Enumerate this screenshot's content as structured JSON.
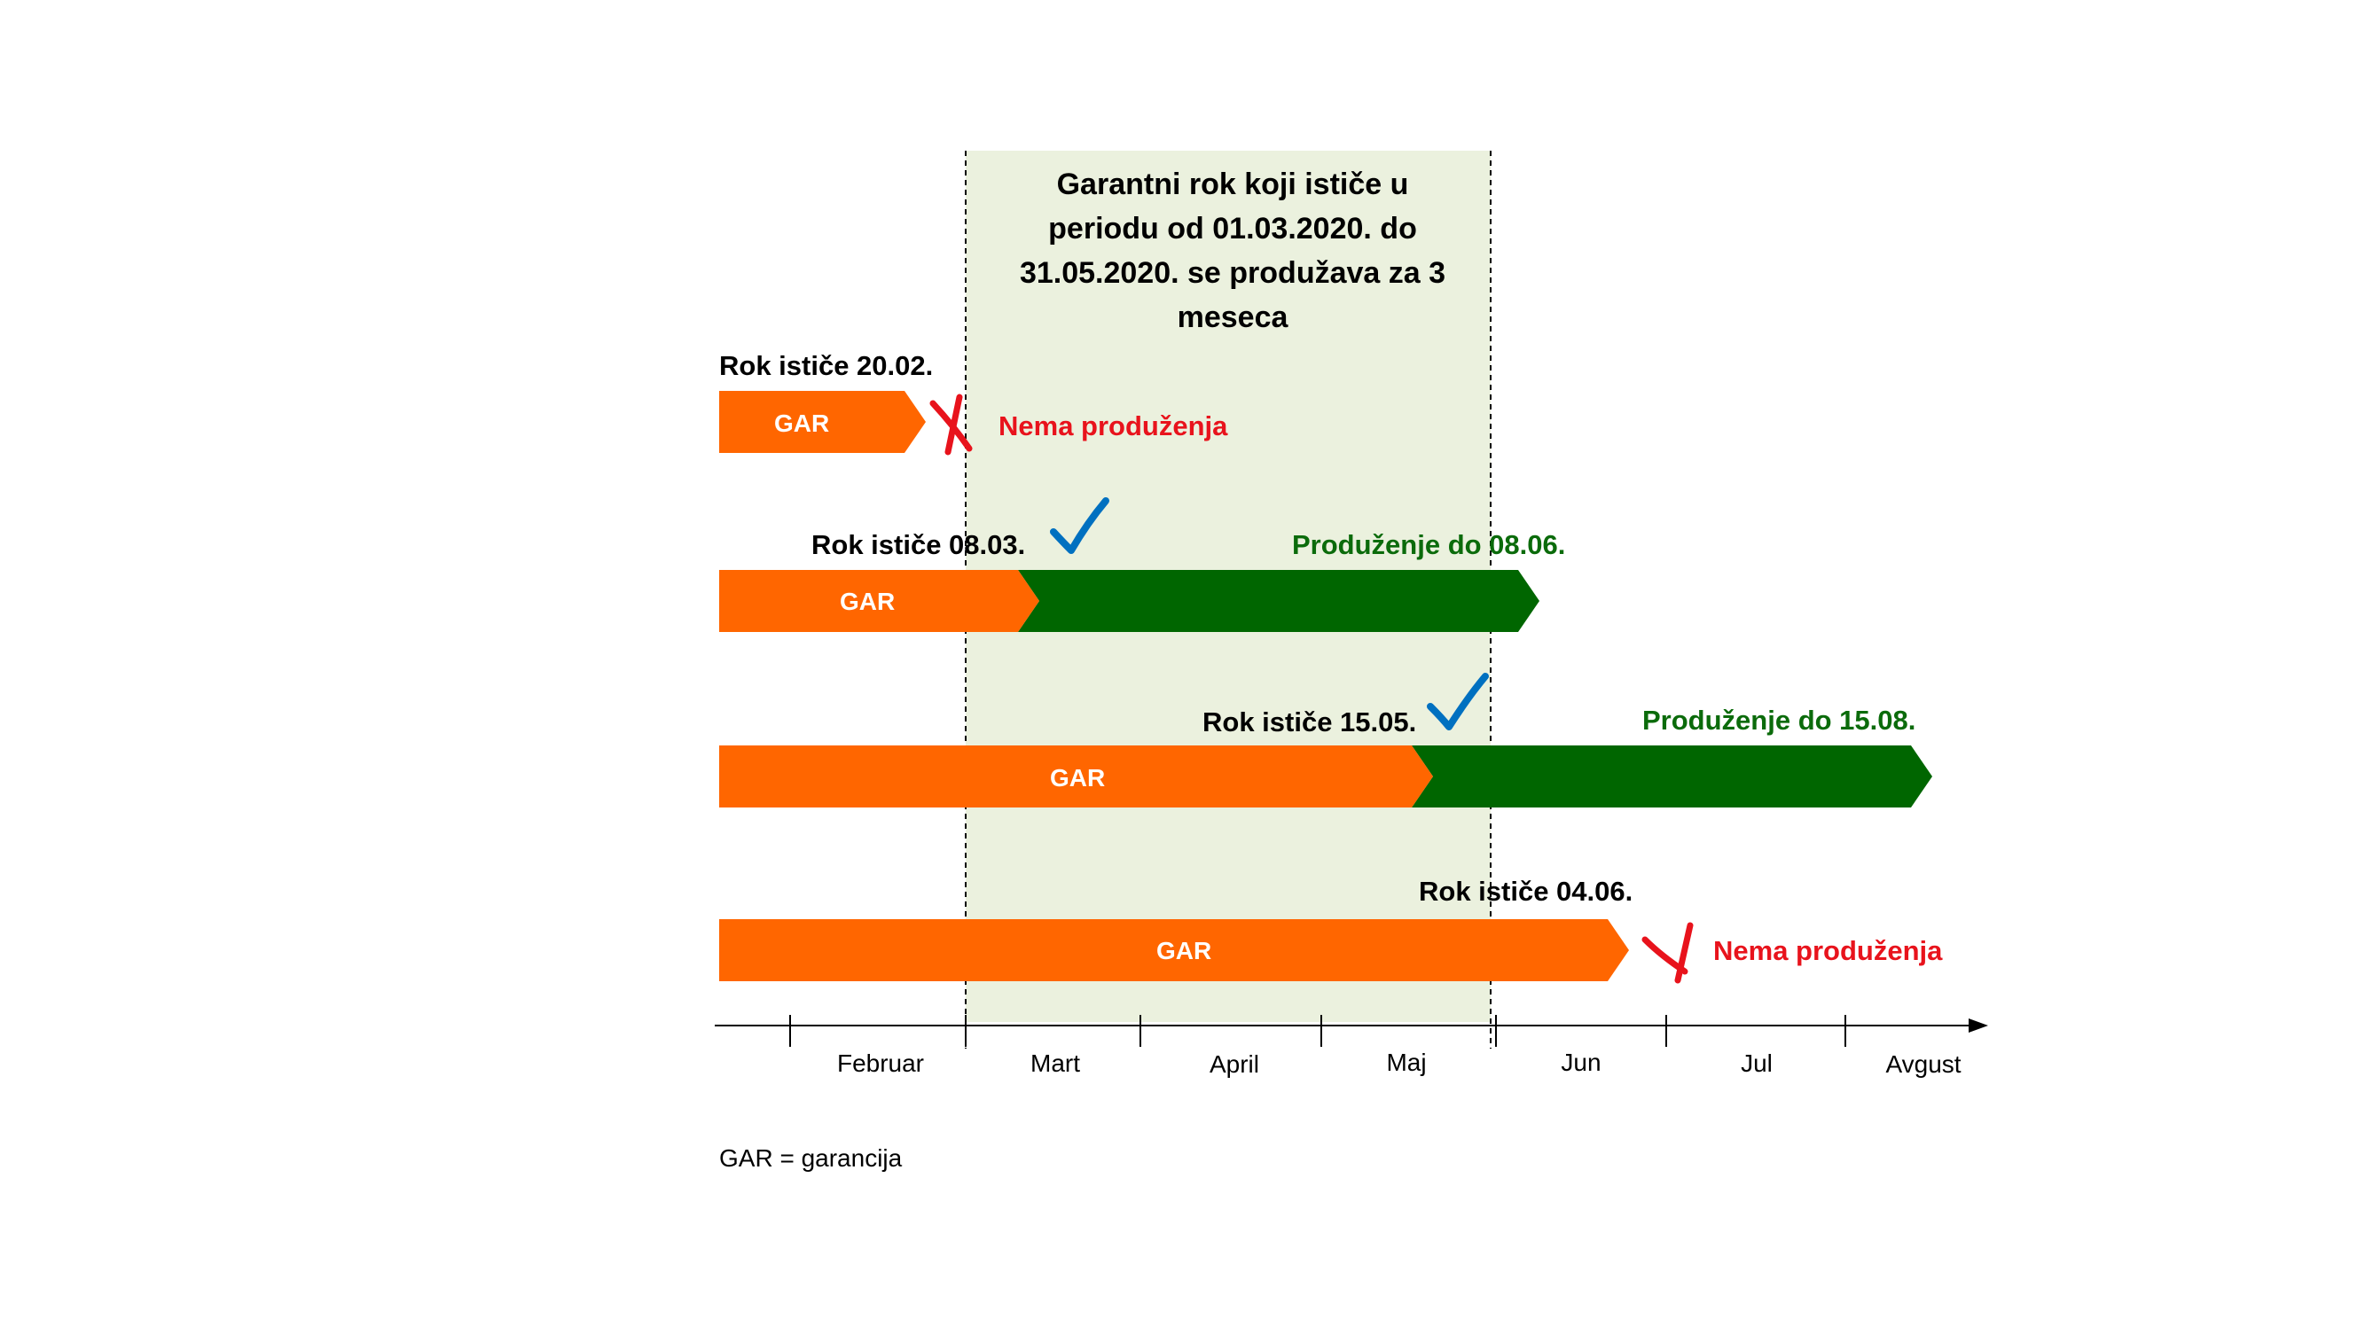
{
  "period": {
    "lines": [
      "Garantni rok koji ističe u",
      "periodu od 01.03.2020. do",
      "31.05.2020. se produžava za 3",
      "meseca"
    ],
    "fill": "#ebf1de"
  },
  "colors": {
    "orange": "#ff6600",
    "green": "#006600",
    "red": "#e8131c",
    "check_blue": "#0070c0"
  },
  "rows": [
    {
      "expiry_label": "Rok ističe 20.02.",
      "bar_label": "GAR",
      "status_icon": "cross-icon",
      "status_text": "Nema produženja",
      "extension_text": ""
    },
    {
      "expiry_label": "Rok ističe 08.03.",
      "bar_label": "GAR",
      "status_icon": "check-icon",
      "status_text": "",
      "extension_text": "Produženje do 08.06."
    },
    {
      "expiry_label": "Rok ističe 15.05.",
      "bar_label": "GAR",
      "status_icon": "check-icon",
      "status_text": "",
      "extension_text": "Produženje do 15.08."
    },
    {
      "expiry_label": "Rok ističe 04.06.",
      "bar_label": "GAR",
      "status_icon": "cross-icon",
      "status_text": "Nema produženja",
      "extension_text": ""
    }
  ],
  "months": [
    "Februar",
    "Mart",
    "April",
    "Maj",
    "Jun",
    "Jul",
    "Avgust"
  ],
  "legend": "GAR = garancija"
}
